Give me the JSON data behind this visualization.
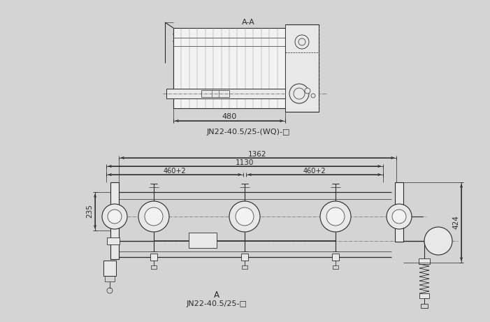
{
  "bg_color": "#d4d4d4",
  "line_color": "#2a2a2a",
  "dim_color": "#2a2a2a",
  "fill_light": "#e8e8e8",
  "fill_white": "#f2f2f2",
  "title_aa": "A-A",
  "label_aa": "JN22-40.5/25-(WQ)-□",
  "dim_480": "480",
  "title_a": "A",
  "label_a": "JN22-40.5/25-□",
  "dim_1362": "1362",
  "dim_1130": "1130",
  "dim_460_1": "460+2",
  "dim_460_2": "460+2",
  "dim_235": "235",
  "dim_424": "424",
  "figw": 7.01,
  "figh": 4.61,
  "dpi": 100
}
